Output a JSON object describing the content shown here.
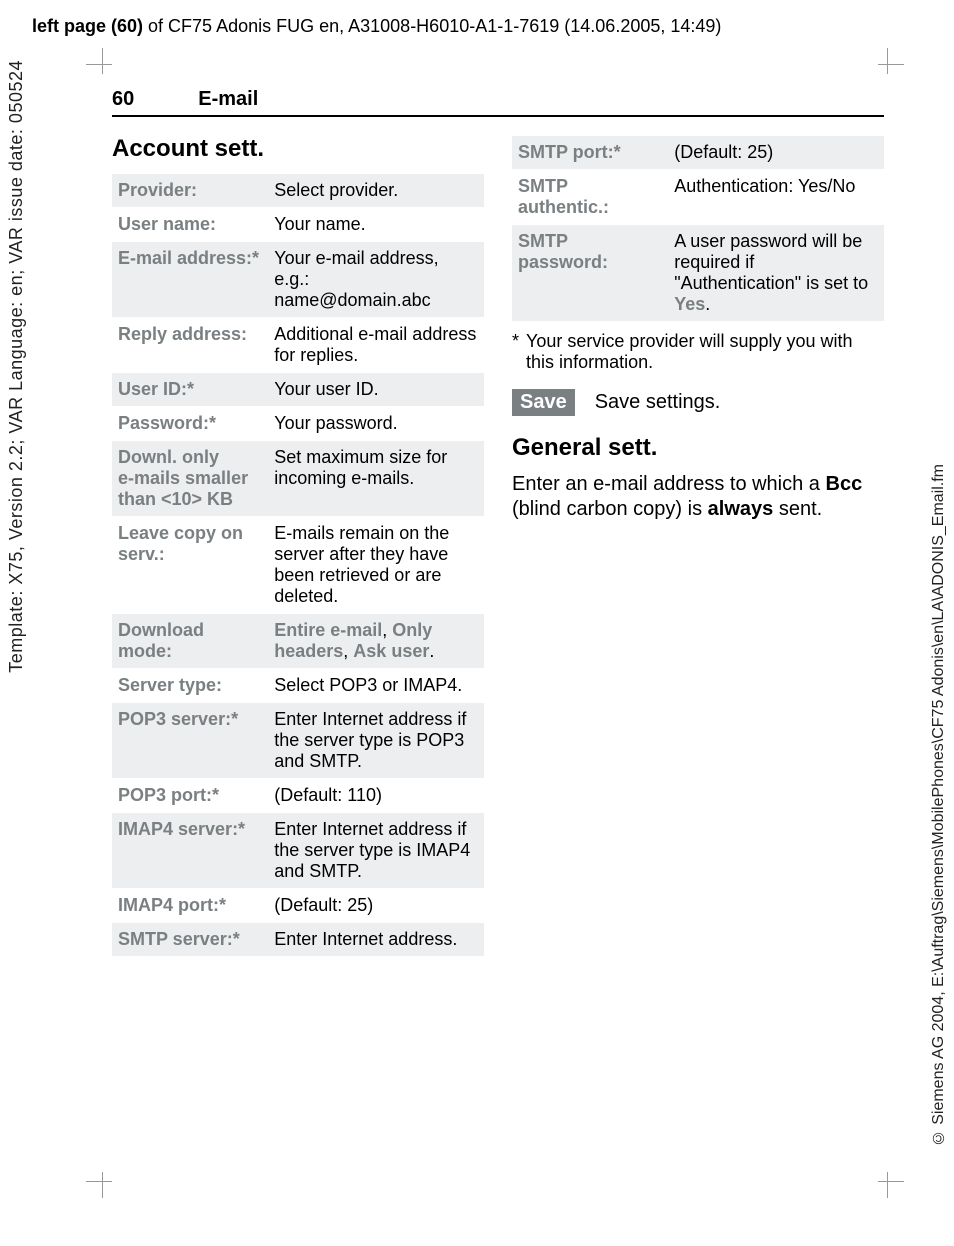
{
  "header": {
    "side": "left page (60)",
    "doc": " of CF75 Adonis FUG en, A31008-H6010-A1-1-7619 (14.06.2005, 14:49)"
  },
  "side_left": "Template: X75, Version 2.2; VAR Language: en; VAR issue date: 050524",
  "side_right": "© Siemens AG 2004, E:\\Auftrag\\Siemens\\MobilePhones\\CF75 Adonis\\en\\LA\\ADONIS_Email.fm",
  "page": {
    "number": "60",
    "chapter": "E-mail"
  },
  "left": {
    "heading": "Account sett.",
    "rows": [
      {
        "k": "Provider:",
        "v": "Select provider."
      },
      {
        "k": "User name:",
        "v": "Your name."
      },
      {
        "k": "E-mail address:*",
        "v": "Your e-mail address, e.g.:\nname@domain.abc"
      },
      {
        "k": "Reply address:",
        "v": "Additional e-mail address for replies."
      },
      {
        "k": "User ID:*",
        "v": "Your user ID."
      },
      {
        "k": "Password:*",
        "v": "Your password."
      },
      {
        "k": "Downl. only\ne-mails smaller than <10> KB",
        "v": "Set maximum size for incoming e-mails."
      },
      {
        "k": "Leave copy on serv.:",
        "v": "E-mails remain on the server after they have been retrieved or are deleted."
      },
      {
        "k": "Download mode:",
        "v_html": "<span class=\"dim-bold\">Entire e-mail</span>, <span class=\"dim-bold\">Only headers</span>, <span class=\"dim-bold\">Ask user</span>."
      },
      {
        "k": "Server type:",
        "v": "Select POP3 or IMAP4."
      },
      {
        "k": "POP3 server:*",
        "v": "Enter Internet address if the server type is POP3 and SMTP."
      },
      {
        "k": "POP3 port:*",
        "v": "(Default: 110)"
      },
      {
        "k": "IMAP4 server:*",
        "v": "Enter Internet address if the server type is IMAP4 and SMTP."
      },
      {
        "k": "IMAP4 port:*",
        "v": "(Default: 25)"
      },
      {
        "k": "SMTP server:*",
        "v": "Enter Internet address."
      }
    ]
  },
  "right": {
    "rows": [
      {
        "k": "SMTP port:*",
        "v": "(Default: 25)"
      },
      {
        "k": "SMTP authentic.:",
        "v": "Authentication: Yes/No"
      },
      {
        "k": "SMTP password:",
        "v_html": "A user password will be required if \"Authentication\" is set to <span class=\"dim-bold\">Yes</span>."
      }
    ],
    "footnote_star": "*",
    "footnote": "Your service provider will supply you with this information.",
    "save_label": "Save",
    "save_text": "Save settings.",
    "heading2": "General sett.",
    "para_html": "Enter an e-mail address to which a <b>Bcc</b> (blind carbon copy) is <b>always</b> sent."
  }
}
